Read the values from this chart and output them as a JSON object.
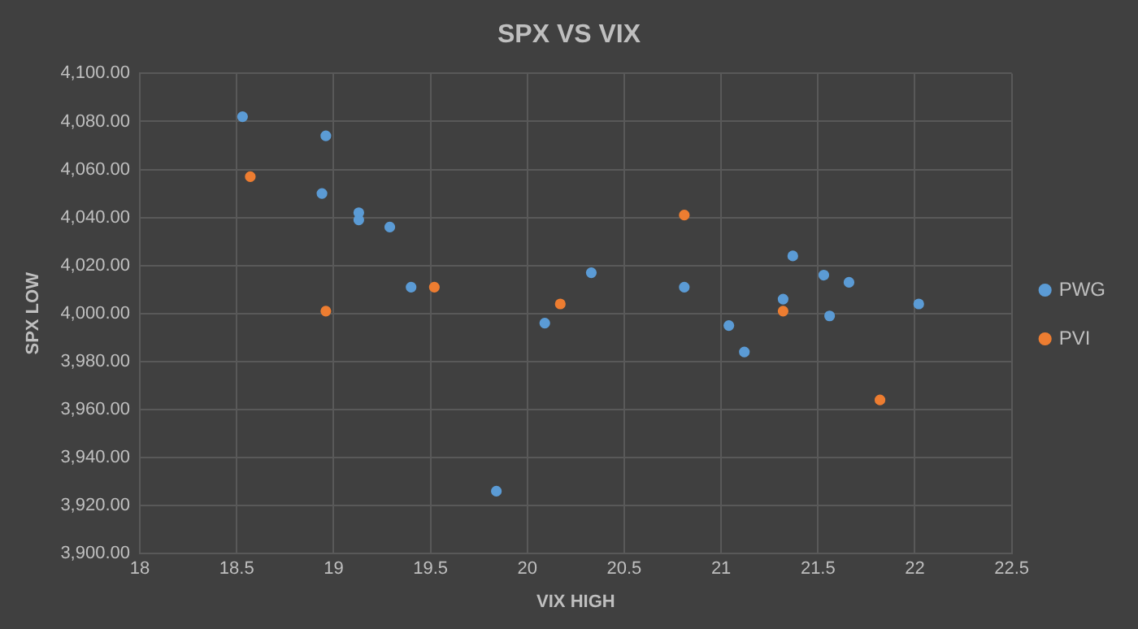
{
  "chart_data": {
    "type": "scatter",
    "title": "SPX VS VIX",
    "xlabel": "VIX HIGH",
    "ylabel": "SPX LOW",
    "xlim": [
      18,
      22.5
    ],
    "xticks": [
      18,
      18.5,
      19,
      19.5,
      20,
      20.5,
      21,
      21.5,
      22,
      22.5
    ],
    "ylim": [
      3900,
      4100
    ],
    "yticks": [
      {
        "value": 3900,
        "label": "3,900.00"
      },
      {
        "value": 3920,
        "label": "3,920.00"
      },
      {
        "value": 3940,
        "label": "3,940.00"
      },
      {
        "value": 3960,
        "label": "3,960.00"
      },
      {
        "value": 3980,
        "label": "3,980.00"
      },
      {
        "value": 4000,
        "label": "4,000.00"
      },
      {
        "value": 4020,
        "label": "4,020.00"
      },
      {
        "value": 4040,
        "label": "4,040.00"
      },
      {
        "value": 4060,
        "label": "4,060.00"
      },
      {
        "value": 4080,
        "label": "4,080.00"
      },
      {
        "value": 4100,
        "label": "4,100.00"
      }
    ],
    "grid": true,
    "legend": "right",
    "marker": "circle",
    "series": [
      {
        "name": "PWG",
        "color": "#5b9bd5",
        "x": [
          18.53,
          18.96,
          18.94,
          19.13,
          19.13,
          19.29,
          19.4,
          20.09,
          19.84,
          20.33,
          20.81,
          21.04,
          21.12,
          21.32,
          21.37,
          21.53,
          21.56,
          21.66,
          22.02
        ],
        "values": [
          4082,
          4074,
          4050,
          4042,
          4039,
          4036,
          4011,
          3996,
          3926,
          4017,
          4011,
          3995,
          3984,
          4006,
          4024,
          4016,
          3999,
          4013,
          4004
        ]
      },
      {
        "name": "PVI",
        "color": "#ed7d31",
        "x": [
          18.57,
          18.96,
          19.52,
          20.17,
          20.81,
          21.32,
          21.82
        ],
        "values": [
          4057,
          4001,
          4011,
          4004,
          4041,
          4001,
          3964
        ]
      }
    ]
  }
}
